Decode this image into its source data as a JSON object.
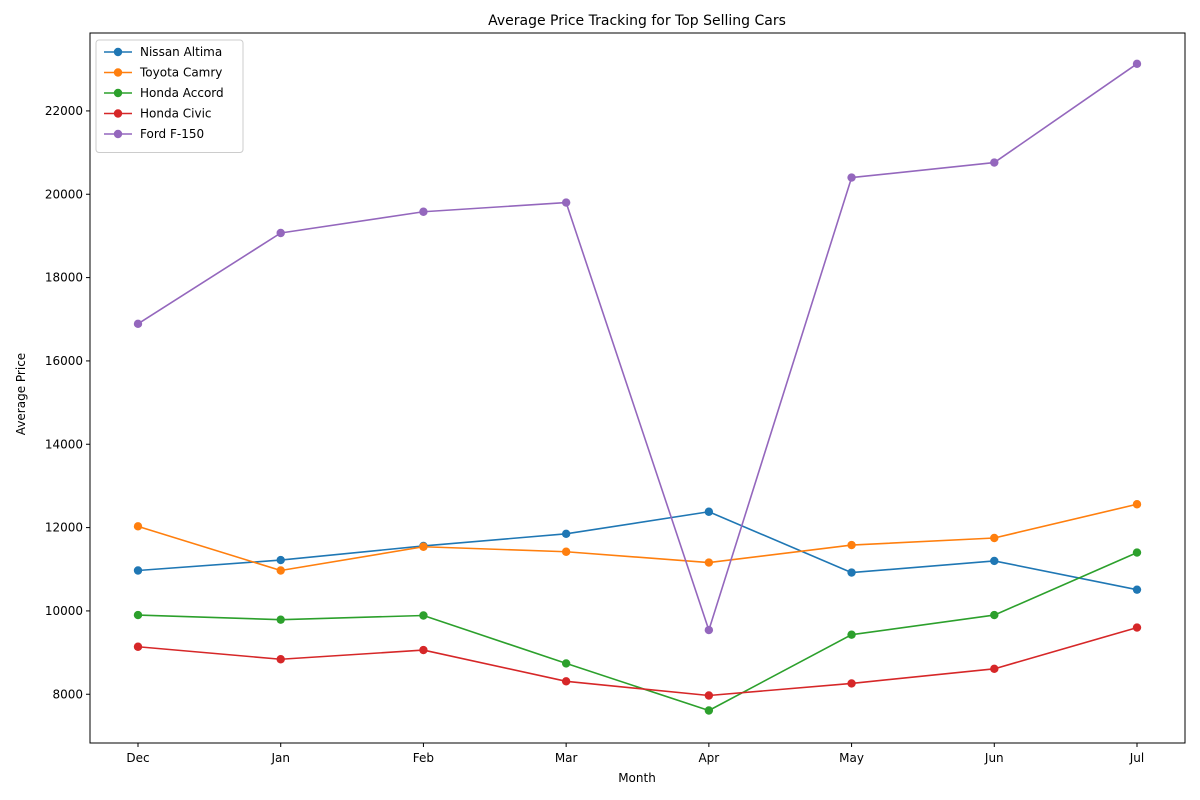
{
  "chart_data": {
    "type": "line",
    "title": "Average Price Tracking for Top Selling Cars",
    "xlabel": "Month",
    "ylabel": "Average Price",
    "categories": [
      "Dec",
      "Jan",
      "Feb",
      "Mar",
      "Apr",
      "May",
      "Jun",
      "Jul"
    ],
    "yticks": [
      8000,
      10000,
      12000,
      14000,
      16000,
      18000,
      20000,
      22000
    ],
    "ylim": [
      6830,
      23870
    ],
    "grid": false,
    "legend_position": "top-left",
    "marker": "circle",
    "series": [
      {
        "name": "Nissan Altima",
        "color": "#1f77b4",
        "values": [
          10970,
          11220,
          11560,
          11850,
          12380,
          10920,
          11200,
          10510
        ]
      },
      {
        "name": "Toyota Camry",
        "color": "#ff7f0e",
        "values": [
          12030,
          10970,
          11540,
          11420,
          11160,
          11580,
          11750,
          12560
        ]
      },
      {
        "name": "Honda Accord",
        "color": "#2ca02c",
        "values": [
          9900,
          9790,
          9890,
          8740,
          7610,
          9430,
          9900,
          11400
        ]
      },
      {
        "name": "Honda Civic",
        "color": "#d62728",
        "values": [
          9140,
          8840,
          9060,
          8310,
          7970,
          8260,
          8610,
          9600
        ]
      },
      {
        "name": "Ford F-150",
        "color": "#9467bd",
        "values": [
          16890,
          19070,
          19580,
          19800,
          9540,
          20400,
          20760,
          23130
        ]
      }
    ]
  }
}
